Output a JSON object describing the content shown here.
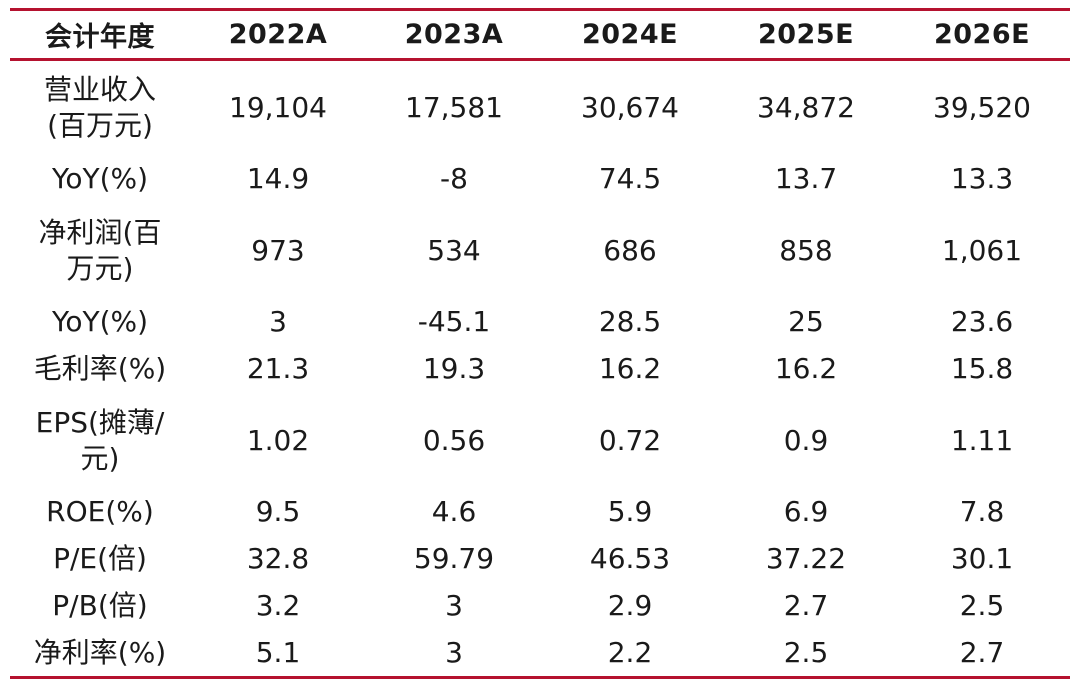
{
  "header": [
    "会计年度",
    "2022A",
    "2023A",
    "2024E",
    "2025E",
    "2026E"
  ],
  "rows": [
    {
      "label_lines": [
        "营业收入",
        "(百万元)"
      ],
      "values": [
        "19,104",
        "17,581",
        "30,674",
        "34,872",
        "39,520"
      ]
    },
    {
      "label_lines": [
        "YoY(%)"
      ],
      "values": [
        "14.9",
        "-8",
        "74.5",
        "13.7",
        "13.3"
      ]
    },
    {
      "label_lines": [
        "净利润(百",
        "万元)"
      ],
      "values": [
        "973",
        "534",
        "686",
        "858",
        "1,061"
      ]
    },
    {
      "label_lines": [
        "YoY(%)"
      ],
      "values": [
        "3",
        "-45.1",
        "28.5",
        "25",
        "23.6"
      ]
    },
    {
      "label_lines": [
        "毛利率(%)"
      ],
      "values": [
        "21.3",
        "19.3",
        "16.2",
        "16.2",
        "15.8"
      ]
    },
    {
      "label_lines": [
        "EPS(摊薄/",
        "元)"
      ],
      "values": [
        "1.02",
        "0.56",
        "0.72",
        "0.9",
        "1.11"
      ]
    },
    {
      "label_lines": [
        "ROE(%)"
      ],
      "values": [
        "9.5",
        "4.6",
        "5.9",
        "6.9",
        "7.8"
      ]
    },
    {
      "label_lines": [
        "P/E(倍)"
      ],
      "values": [
        "32.8",
        "59.79",
        "46.53",
        "37.22",
        "30.1"
      ]
    },
    {
      "label_lines": [
        "P/B(倍)"
      ],
      "values": [
        "3.2",
        "3",
        "2.9",
        "2.7",
        "2.5"
      ]
    },
    {
      "label_lines": [
        "净利率(%)"
      ],
      "values": [
        "5.1",
        "3",
        "2.2",
        "2.5",
        "2.7"
      ]
    }
  ],
  "colors": {
    "rule": "#b5122f",
    "text": "#1a1a1a"
  }
}
